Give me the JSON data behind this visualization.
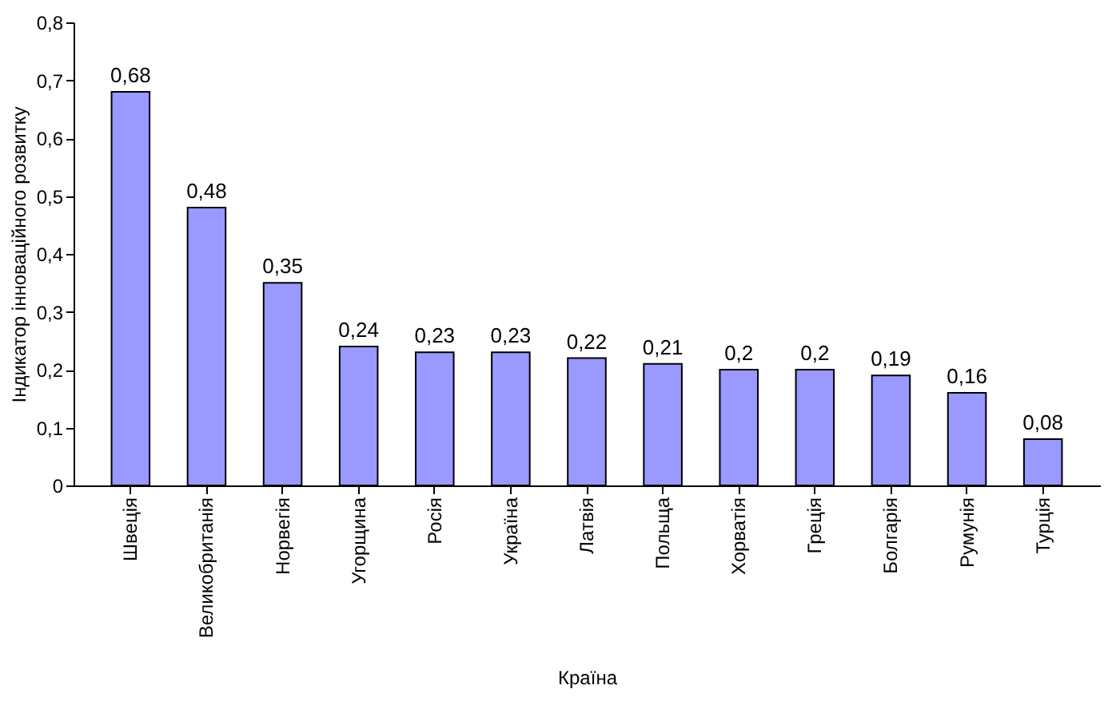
{
  "chart_data": {
    "type": "bar",
    "xlabel": "Країна",
    "ylabel": "Індикатор інноваційного розвитку",
    "categories": [
      "Швеція",
      "Великобританія",
      "Норвегія",
      "Угорщина",
      "Росія",
      "Україна",
      "Латвія",
      "Польща",
      "Хорватія",
      "Греція",
      "Болгарія",
      "Румунія",
      "Турція"
    ],
    "values": [
      0.68,
      0.48,
      0.35,
      0.24,
      0.23,
      0.23,
      0.22,
      0.21,
      0.2,
      0.2,
      0.19,
      0.16,
      0.08
    ],
    "value_labels": [
      "0,68",
      "0,48",
      "0,35",
      "0,24",
      "0,23",
      "0,23",
      "0,22",
      "0,21",
      "0,2",
      "0,2",
      "0,19",
      "0,16",
      "0,08"
    ],
    "color": "#9999ff",
    "ylim": [
      0,
      0.8
    ],
    "yticks": [
      {
        "value": 0,
        "label": "0"
      },
      {
        "value": 0.1,
        "label": "0,1"
      },
      {
        "value": 0.2,
        "label": "0,2"
      },
      {
        "value": 0.3,
        "label": "0,3"
      },
      {
        "value": 0.4,
        "label": "0,4"
      },
      {
        "value": 0.5,
        "label": "0,5"
      },
      {
        "value": 0.6,
        "label": "0,6"
      },
      {
        "value": 0.7,
        "label": "0,7"
      },
      {
        "value": 0.8,
        "label": "0,8"
      }
    ],
    "grid": false
  }
}
